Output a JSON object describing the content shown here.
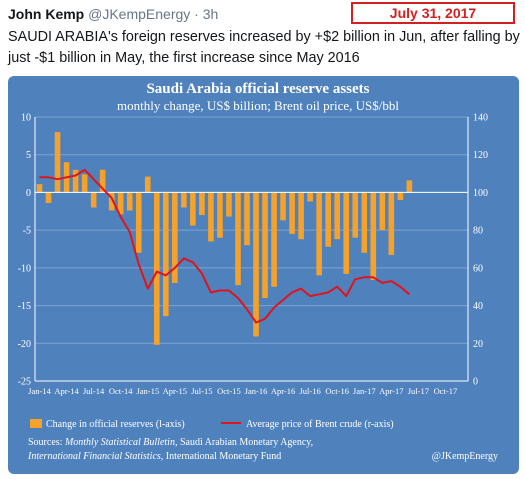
{
  "tweet": {
    "author_name": "John Kemp",
    "handle": "@JKempEnergy",
    "separator": "·",
    "time": "3h",
    "date_stamp": "July 31, 2017",
    "text": "SAUDI ARABIA's foreign reserves increased by +$2 billion in Jun, after falling by just -$1 billion in May, the first increase since May 2016"
  },
  "colors": {
    "panel_background": "#4f81bd",
    "bar": "#f5a22a",
    "line": "#e0141b",
    "text": "#ffffff",
    "date_stamp": "#d21f1f"
  },
  "chart_data": {
    "type": "bar",
    "title": "Saudi Arabia official reserve assets",
    "subtitle": "monthly change, US$ billion; Brent oil price, US$/bbl",
    "x_tick_labels": [
      "Jan-14",
      "Apr-14",
      "Jul-14",
      "Oct-14",
      "Jan-15",
      "Apr-15",
      "Jul-15",
      "Oct-15",
      "Jan-16",
      "Apr-16",
      "Jul-16",
      "Oct-16",
      "Jan-17",
      "Apr-17",
      "Jul-17",
      "Oct-17"
    ],
    "left_axis": {
      "ylim": [
        -25,
        10
      ],
      "ticks": [
        10,
        5,
        0,
        -5,
        -10,
        -15,
        -20,
        -25
      ]
    },
    "right_axis": {
      "ylim": [
        0,
        140
      ],
      "ticks": [
        140,
        120,
        100,
        80,
        60,
        40,
        20,
        0
      ]
    },
    "x": [
      "Jan-14",
      "Feb-14",
      "Mar-14",
      "Apr-14",
      "May-14",
      "Jun-14",
      "Jul-14",
      "Aug-14",
      "Sep-14",
      "Oct-14",
      "Nov-14",
      "Dec-14",
      "Jan-15",
      "Feb-15",
      "Mar-15",
      "Apr-15",
      "May-15",
      "Jun-15",
      "Jul-15",
      "Aug-15",
      "Sep-15",
      "Oct-15",
      "Nov-15",
      "Dec-15",
      "Jan-16",
      "Feb-16",
      "Mar-16",
      "Apr-16",
      "May-16",
      "Jun-16",
      "Jul-16",
      "Aug-16",
      "Sep-16",
      "Oct-16",
      "Nov-16",
      "Dec-16",
      "Jan-17",
      "Feb-17",
      "Mar-17",
      "Apr-17",
      "May-17",
      "Jun-17"
    ],
    "series": [
      {
        "name": "Change in official reserves (l-axis)",
        "type": "bar",
        "axis": "left",
        "values": [
          1.1,
          -1.4,
          8.0,
          4.0,
          3.0,
          2.4,
          -2.0,
          3.0,
          -2.4,
          -2.9,
          -2.4,
          -8.0,
          2.1,
          -20.2,
          -16.4,
          -12.0,
          -2.0,
          -4.4,
          -3.0,
          -6.5,
          -6.0,
          -3.2,
          -12.3,
          -7.0,
          -19.1,
          -14.0,
          -12.5,
          -3.7,
          -5.5,
          -6.2,
          -1.2,
          -11.0,
          -7.2,
          -6.2,
          -10.8,
          -6.0,
          -8.0,
          -11.6,
          -5.0,
          -8.3,
          -1.0,
          1.6
        ]
      },
      {
        "name": "Average price of Brent crude (r-axis)",
        "type": "line",
        "axis": "right",
        "values": [
          108,
          108,
          107,
          108,
          109,
          112,
          107,
          102,
          97,
          87,
          79,
          62,
          49,
          58,
          56,
          60,
          65,
          63,
          57,
          47,
          48,
          48,
          44,
          38,
          31,
          33,
          39,
          43,
          47,
          49,
          45,
          46,
          47,
          50,
          45,
          54,
          55,
          55,
          52,
          53,
          50,
          46
        ]
      }
    ],
    "legend_placement": "bottom",
    "grid": "horizontal",
    "source_prefix": "Sources: ",
    "source_line1_italic": "Monthly Statistical Bulletin",
    "source_line1_rest": ", Saudi Arabian Monetary Agency,",
    "source_line2_italic": "International Financial Statistics",
    "source_line2_rest": ", International Monetary Fund",
    "credit": "@JKempEnergy"
  }
}
